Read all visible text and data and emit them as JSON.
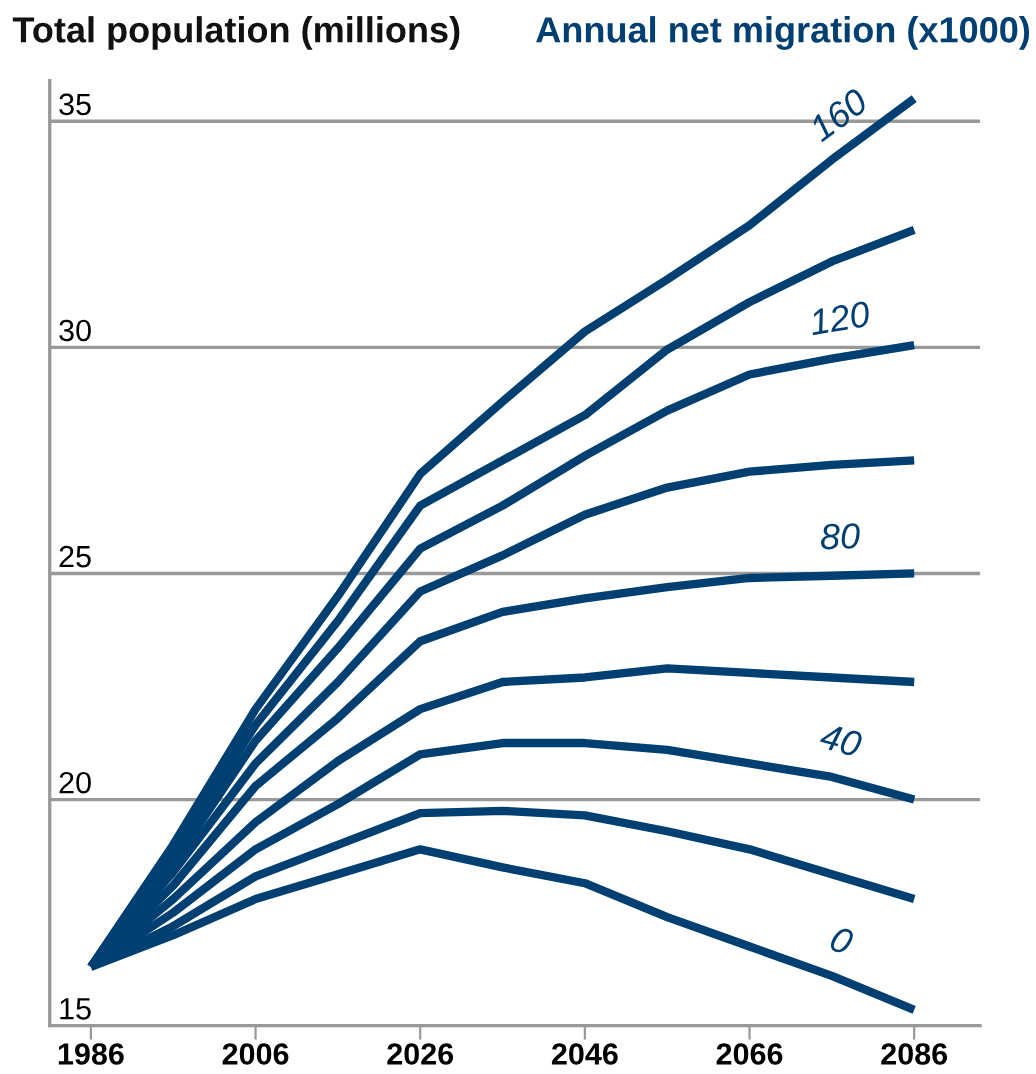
{
  "chart_data": {
    "type": "line",
    "title": "Total population (millions)",
    "subtitle": "Annual net migration (x1000)",
    "x": [
      1986,
      1996,
      2006,
      2016,
      2026,
      2036,
      2046,
      2056,
      2066,
      2076,
      2086
    ],
    "series": [
      {
        "name": "0",
        "color": "#003f72",
        "values": [
          16.3,
          17.0,
          17.8,
          18.35,
          18.9,
          18.5,
          18.15,
          17.4,
          16.75,
          16.1,
          15.35
        ]
      },
      {
        "color": "#003f72",
        "values": [
          16.3,
          17.2,
          18.3,
          19.0,
          19.7,
          19.75,
          19.65,
          19.3,
          18.9,
          18.35,
          17.8
        ]
      },
      {
        "name": "40",
        "color": "#003f72",
        "values": [
          16.3,
          17.5,
          18.9,
          19.9,
          21.0,
          21.25,
          21.25,
          21.1,
          20.8,
          20.5,
          20.0
        ]
      },
      {
        "color": "#003f72",
        "values": [
          16.3,
          17.8,
          19.5,
          20.85,
          22.0,
          22.6,
          22.7,
          22.9,
          22.8,
          22.7,
          22.6
        ]
      },
      {
        "name": "80",
        "color": "#003f72",
        "values": [
          16.3,
          18.1,
          20.3,
          21.8,
          23.5,
          24.15,
          24.45,
          24.7,
          24.9,
          24.95,
          25.0
        ]
      },
      {
        "color": "#003f72",
        "values": [
          16.3,
          18.4,
          20.8,
          22.6,
          24.6,
          25.4,
          26.3,
          26.9,
          27.25,
          27.4,
          27.5
        ]
      },
      {
        "name": "120",
        "color": "#003f72",
        "values": [
          16.3,
          18.6,
          21.3,
          23.35,
          25.55,
          26.5,
          27.6,
          28.6,
          29.4,
          29.75,
          30.05
        ]
      },
      {
        "color": "#003f72",
        "values": [
          16.3,
          18.8,
          21.65,
          23.95,
          26.5,
          27.5,
          28.5,
          29.95,
          31.0,
          31.9,
          32.6
        ]
      },
      {
        "name": "160",
        "color": "#003f72",
        "values": [
          16.3,
          19.0,
          22.0,
          24.5,
          27.2,
          28.8,
          30.35,
          31.5,
          32.7,
          34.15,
          35.5
        ]
      }
    ],
    "xlim": [
      1981,
      2094
    ],
    "ylim": [
      15,
      35.9
    ],
    "xticks": [
      1986,
      2006,
      2026,
      2046,
      2066,
      2086
    ],
    "yticks": [
      15,
      20,
      25,
      30,
      35
    ],
    "grid": "y",
    "line_style": "solid",
    "marker": "none"
  }
}
